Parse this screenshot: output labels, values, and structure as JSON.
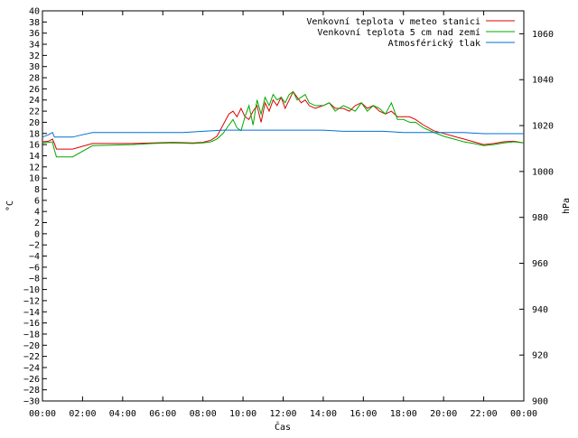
{
  "chart_data": {
    "type": "line",
    "xlabel": "Čas",
    "ylabel": "°C",
    "y2label": "hPa",
    "x_ticks": [
      "00:00",
      "02:00",
      "04:00",
      "06:00",
      "08:00",
      "10:00",
      "12:00",
      "14:00",
      "16:00",
      "18:00",
      "20:00",
      "22:00",
      "00:00"
    ],
    "xlim": [
      0,
      24
    ],
    "ylim": [
      -30,
      40
    ],
    "y_ticks": [
      40,
      38,
      36,
      34,
      32,
      30,
      28,
      26,
      24,
      22,
      20,
      18,
      16,
      14,
      12,
      10,
      8,
      6,
      4,
      2,
      0,
      -2,
      -4,
      -6,
      -8,
      -10,
      -12,
      -14,
      -16,
      -18,
      -20,
      -22,
      -24,
      -26,
      -28,
      -30
    ],
    "y2lim": [
      900,
      1070
    ],
    "y2_ticks": [
      1060,
      1040,
      1020,
      1000,
      980,
      960,
      940,
      920,
      900
    ],
    "legend_position": "top-right",
    "series": [
      {
        "name": "Venkovní teplota v meteo stanici",
        "color": "#dd0000",
        "axis": "y",
        "x": [
          0,
          0.3,
          0.5,
          0.6,
          0.7,
          1.5,
          2.5,
          3.5,
          4.5,
          5.5,
          6.5,
          7.5,
          8.0,
          8.4,
          8.7,
          9.0,
          9.3,
          9.5,
          9.7,
          9.9,
          10.1,
          10.3,
          10.5,
          10.7,
          10.9,
          11.1,
          11.3,
          11.5,
          11.7,
          11.9,
          12.1,
          12.3,
          12.5,
          12.7,
          12.9,
          13.1,
          13.3,
          13.6,
          14.0,
          14.3,
          14.6,
          15.0,
          15.3,
          15.6,
          15.9,
          16.2,
          16.5,
          16.8,
          17.1,
          17.4,
          17.7,
          18.0,
          18.3,
          18.6,
          19.0,
          19.5,
          20.0,
          20.5,
          21.0,
          21.5,
          22.0,
          22.5,
          23.0,
          23.5,
          24.0
        ],
        "y": [
          16.5,
          16.6,
          17.0,
          16.2,
          15.2,
          15.2,
          16.2,
          16.2,
          16.2,
          16.3,
          16.4,
          16.3,
          16.4,
          16.8,
          17.5,
          19.5,
          21.5,
          22.0,
          21.0,
          22.5,
          21.0,
          20.5,
          22.0,
          23.0,
          20.0,
          23.5,
          22.0,
          24.0,
          23.0,
          24.5,
          22.5,
          24.0,
          25.5,
          24.5,
          23.5,
          24.0,
          23.0,
          22.5,
          23.0,
          23.5,
          22.5,
          22.5,
          22.0,
          23.0,
          23.5,
          22.5,
          23.0,
          22.0,
          21.5,
          22.0,
          21.0,
          21.0,
          21.0,
          20.5,
          19.5,
          18.5,
          18.0,
          17.5,
          17.0,
          16.5,
          16.0,
          16.2,
          16.5,
          16.6,
          16.3
        ]
      },
      {
        "name": "Venkovní teplota 5 cm nad zemí",
        "color": "#00aa00",
        "axis": "y",
        "x": [
          0,
          0.3,
          0.5,
          0.6,
          0.7,
          1.5,
          2.5,
          3.5,
          4.5,
          5.5,
          6.5,
          7.5,
          8.0,
          8.4,
          8.7,
          9.0,
          9.3,
          9.5,
          9.7,
          9.9,
          10.1,
          10.3,
          10.5,
          10.7,
          10.9,
          11.1,
          11.3,
          11.5,
          11.7,
          11.9,
          12.1,
          12.3,
          12.5,
          12.7,
          12.9,
          13.1,
          13.3,
          13.6,
          14.0,
          14.3,
          14.6,
          15.0,
          15.3,
          15.6,
          15.9,
          16.2,
          16.5,
          16.8,
          17.1,
          17.4,
          17.7,
          18.0,
          18.3,
          18.6,
          19.0,
          19.5,
          20.0,
          20.5,
          21.0,
          21.5,
          22.0,
          22.5,
          23.0,
          23.5,
          24.0
        ],
        "y": [
          16.3,
          16.4,
          16.5,
          15.0,
          13.8,
          13.8,
          15.8,
          15.9,
          16.0,
          16.2,
          16.3,
          16.2,
          16.3,
          16.5,
          17.0,
          18.0,
          19.5,
          20.5,
          19.0,
          18.5,
          21.0,
          23.0,
          19.5,
          24.0,
          21.5,
          24.5,
          23.0,
          25.0,
          24.0,
          24.5,
          23.5,
          25.0,
          25.5,
          24.0,
          24.5,
          25.0,
          23.5,
          23.0,
          23.0,
          23.5,
          22.0,
          23.0,
          22.5,
          22.0,
          23.5,
          22.0,
          23.0,
          22.5,
          21.5,
          23.5,
          20.5,
          20.5,
          20.0,
          20.0,
          19.0,
          18.2,
          17.5,
          17.0,
          16.5,
          16.2,
          15.8,
          16.0,
          16.3,
          16.5,
          16.3
        ]
      },
      {
        "name": "Atmosférický tlak",
        "color": "#0070d0",
        "axis": "y2",
        "x": [
          0,
          0.3,
          0.5,
          0.6,
          0.7,
          1.0,
          1.5,
          2.0,
          2.5,
          3.0,
          4.0,
          5.0,
          6.0,
          7.0,
          8.0,
          9.0,
          10.0,
          11.0,
          12.0,
          13.0,
          14.0,
          15.0,
          16.0,
          17.0,
          18.0,
          19.0,
          20.0,
          21.0,
          22.0,
          23.0,
          24.0
        ],
        "y": [
          1015,
          1016,
          1017,
          1015,
          1015,
          1015,
          1015,
          1016,
          1017,
          1017,
          1017,
          1017,
          1017,
          1017,
          1017.5,
          1018,
          1018,
          1018,
          1018,
          1018,
          1018,
          1017.5,
          1017.5,
          1017.5,
          1017,
          1017,
          1017,
          1017,
          1016.5,
          1016.5,
          1016.5
        ]
      }
    ]
  }
}
